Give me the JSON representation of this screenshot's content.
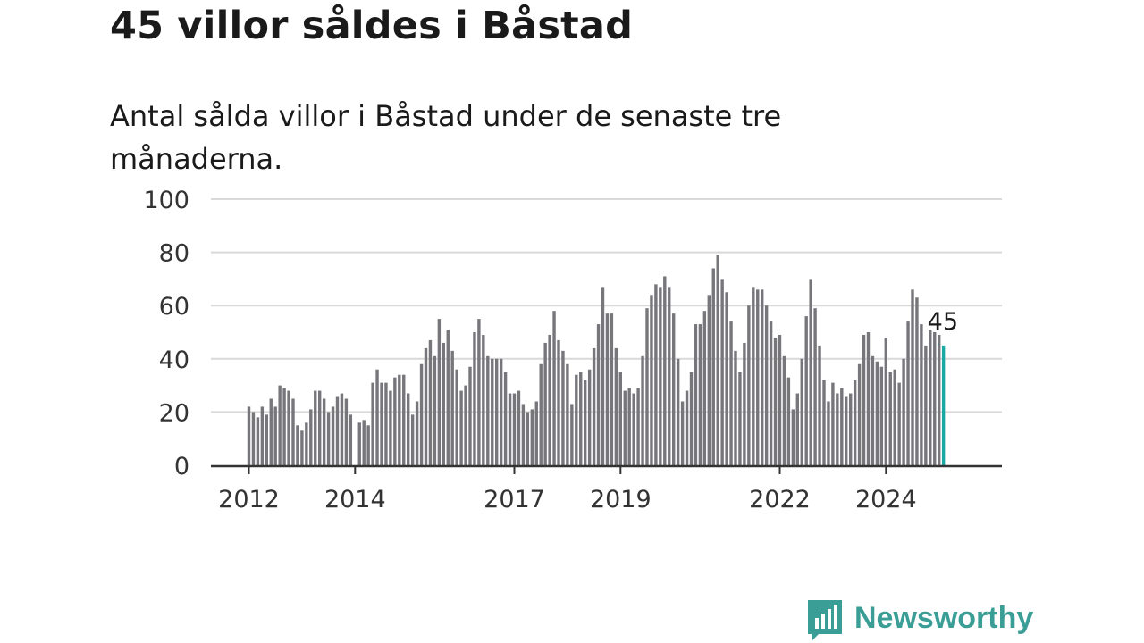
{
  "header": {
    "title": "45 villor såldes i Båstad",
    "subtitle": "Antal sålda villor i Båstad under de senaste tre månaderna."
  },
  "brand": {
    "name": "Newsworthy",
    "color": "#3a9e96",
    "icon": "newsworthy-chart-bubble-icon"
  },
  "chart_data": {
    "type": "bar",
    "title": "",
    "xlabel": "",
    "ylabel": "",
    "ylim": [
      0,
      100
    ],
    "yticks": [
      0,
      20,
      40,
      60,
      80,
      100
    ],
    "xticks": [
      {
        "label": "2012",
        "index": 0
      },
      {
        "label": "2014",
        "index": 24
      },
      {
        "label": "2017",
        "index": 60
      },
      {
        "label": "2019",
        "index": 84
      },
      {
        "label": "2022",
        "index": 120
      },
      {
        "label": "2024",
        "index": 144
      }
    ],
    "grid": true,
    "bar_color": "#77767b",
    "highlight_color": "#19a9a4",
    "highlight_label": "45",
    "values": [
      22,
      20,
      18,
      22,
      19,
      25,
      22,
      30,
      29,
      28,
      25,
      15,
      13,
      16,
      21,
      28,
      28,
      25,
      20,
      22,
      26,
      27,
      25,
      19,
      0,
      16,
      17,
      15,
      31,
      36,
      31,
      31,
      28,
      33,
      34,
      34,
      27,
      19,
      24,
      38,
      44,
      47,
      41,
      55,
      46,
      51,
      43,
      36,
      28,
      30,
      37,
      50,
      55,
      49,
      41,
      40,
      40,
      40,
      35,
      27,
      27,
      28,
      23,
      20,
      21,
      24,
      38,
      46,
      49,
      58,
      47,
      43,
      38,
      23,
      34,
      35,
      32,
      36,
      44,
      53,
      67,
      57,
      57,
      44,
      35,
      28,
      29,
      27,
      29,
      41,
      59,
      64,
      68,
      67,
      71,
      67,
      57,
      40,
      24,
      28,
      35,
      53,
      53,
      58,
      64,
      74,
      79,
      70,
      65,
      54,
      43,
      35,
      46,
      60,
      67,
      66,
      66,
      60,
      54,
      48,
      49,
      41,
      33,
      21,
      27,
      40,
      56,
      70,
      59,
      45,
      32,
      24,
      31,
      27,
      29,
      26,
      27,
      32,
      38,
      49,
      50,
      41,
      39,
      37,
      48,
      35,
      36,
      31,
      40,
      54,
      66,
      63,
      53,
      45,
      51,
      50,
      49,
      45
    ]
  }
}
